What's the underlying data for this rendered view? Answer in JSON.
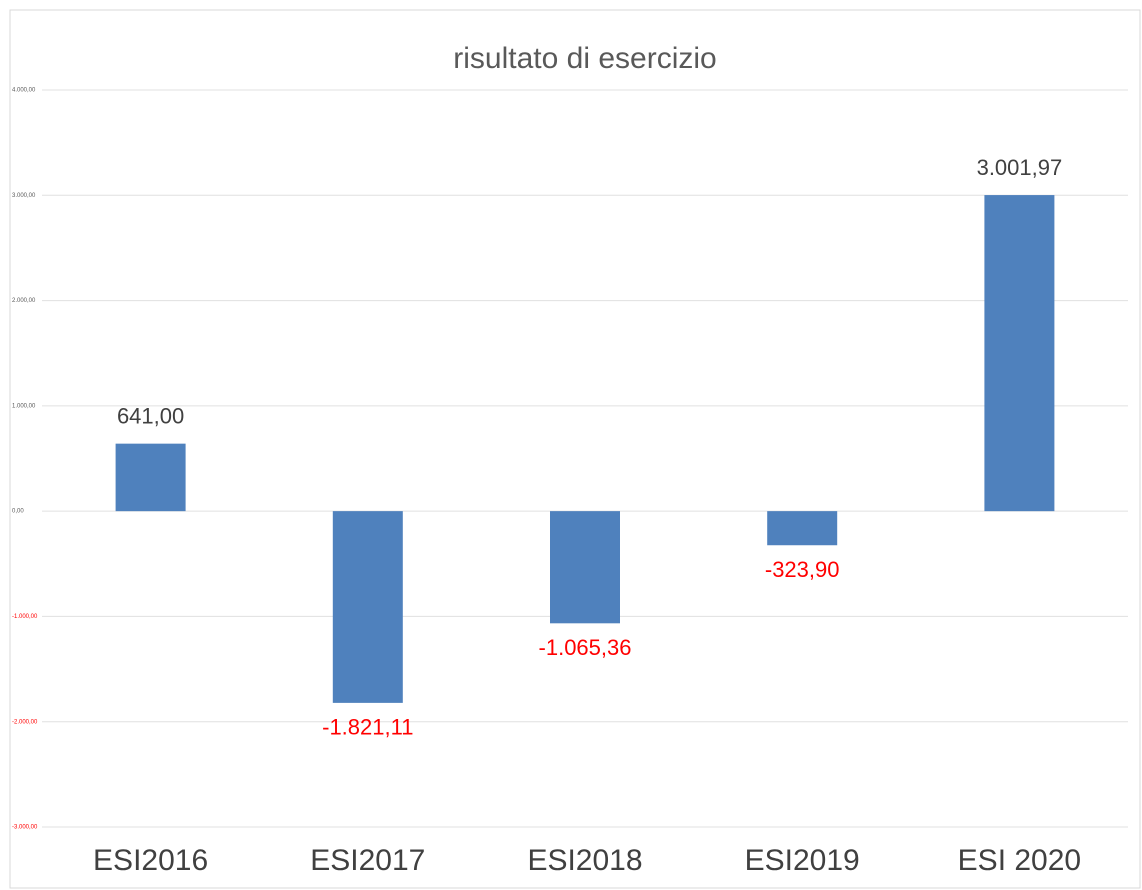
{
  "chart_data": {
    "type": "bar",
    "title": "risultato di esercizio",
    "categories": [
      "ESI2016",
      "ESI2017",
      "ESI2018",
      "ESI2019",
      "ESI 2020"
    ],
    "values": [
      641.0,
      -1821.11,
      -1065.36,
      -323.9,
      3001.97
    ],
    "value_labels": [
      "641,00",
      "-1.821,11",
      "-1.065,36",
      "-323,90",
      "3.001,97"
    ],
    "color": "#4f81bd",
    "label_color": "#404040",
    "negative_color": "#ff0000",
    "ylim": [
      -3000,
      4000
    ],
    "yticks": [
      {
        "value": -3000,
        "label": "-3.000,00"
      },
      {
        "value": -2000,
        "label": "-2.000,00"
      },
      {
        "value": -1000,
        "label": "-1.000,00"
      },
      {
        "value": 0,
        "label": "0,00"
      },
      {
        "value": 1000,
        "label": "1.000,00"
      },
      {
        "value": 2000,
        "label": "2.000,00"
      },
      {
        "value": 3000,
        "label": "3.000,00"
      },
      {
        "value": 4000,
        "label": "4.000,00"
      }
    ],
    "grid": true
  }
}
